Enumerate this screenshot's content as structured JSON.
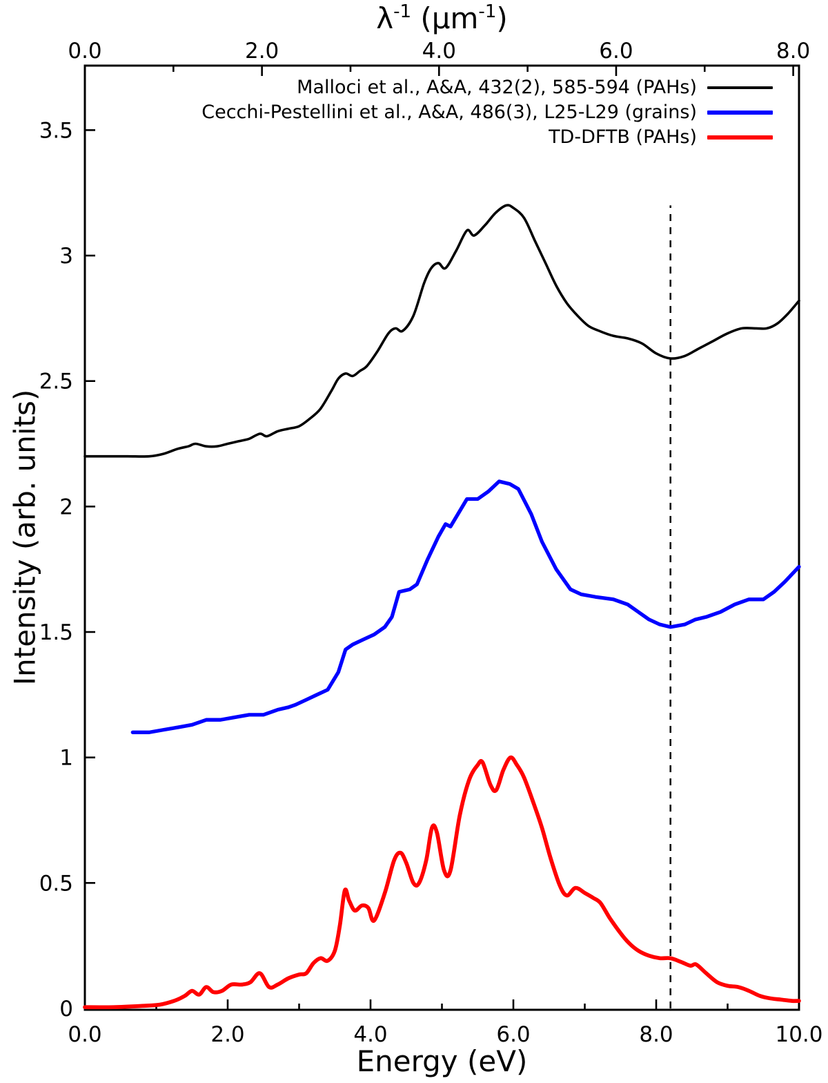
{
  "chart_data": {
    "type": "line",
    "background": "#ffffff",
    "axes_color": "#000000",
    "x_axis": {
      "label": "Energy (eV)",
      "range": [
        0,
        10
      ],
      "major_ticks": [
        0,
        2,
        4,
        6,
        8,
        10
      ],
      "major_tick_labels": [
        "0.0",
        "2.0",
        "4.0",
        "6.0",
        "8.0",
        "10.0"
      ],
      "minor_ticks": [
        1,
        3,
        5,
        7,
        9
      ]
    },
    "top_axis": {
      "label_lambda": "λ",
      "label_sup1": "-1",
      "label_mid": " (μm",
      "label_sup2": "-1",
      "label_end": ")",
      "unit": "μm⁻¹",
      "range": [
        0,
        8
      ],
      "ev_per_unit": 1.23984,
      "major_ticks": [
        0,
        2,
        4,
        6,
        8
      ],
      "major_tick_labels": [
        "0.0",
        "2.0",
        "4.0",
        "6.0",
        "8.0"
      ],
      "minor_ticks": [
        1,
        3,
        5,
        7
      ]
    },
    "y_axis": {
      "label": "Intensity (arb. units)",
      "range": [
        0,
        3.757
      ],
      "major_ticks": [
        0,
        0.5,
        1,
        1.5,
        2,
        2.5,
        3,
        3.5
      ],
      "major_tick_labels": [
        "0",
        "0.5",
        "1",
        "1.5",
        "2",
        "2.5",
        "3",
        "3.5"
      ],
      "minor_ticks": []
    },
    "marker_line": {
      "x": 8.2,
      "y_from": 0,
      "y_to": 3.2,
      "color": "#000000",
      "width": 2.5,
      "dash": [
        10,
        9
      ]
    },
    "legend_position": "upper-right",
    "series": [
      {
        "name": "Malloci et al., A&A, 432(2), 585-594 (PAHs)",
        "color": "#000000",
        "width": 3.6,
        "smooth": true,
        "points": [
          [
            0,
            2.2
          ],
          [
            0.3,
            2.2
          ],
          [
            0.6,
            2.2
          ],
          [
            0.9,
            2.2
          ],
          [
            1.1,
            2.21
          ],
          [
            1.3,
            2.23
          ],
          [
            1.45,
            2.24
          ],
          [
            1.55,
            2.25
          ],
          [
            1.7,
            2.24
          ],
          [
            1.85,
            2.24
          ],
          [
            2.0,
            2.25
          ],
          [
            2.15,
            2.26
          ],
          [
            2.3,
            2.27
          ],
          [
            2.45,
            2.29
          ],
          [
            2.55,
            2.28
          ],
          [
            2.7,
            2.3
          ],
          [
            2.85,
            2.31
          ],
          [
            3.0,
            2.32
          ],
          [
            3.15,
            2.35
          ],
          [
            3.3,
            2.39
          ],
          [
            3.45,
            2.46
          ],
          [
            3.55,
            2.51
          ],
          [
            3.65,
            2.53
          ],
          [
            3.75,
            2.52
          ],
          [
            3.85,
            2.54
          ],
          [
            3.95,
            2.56
          ],
          [
            4.1,
            2.62
          ],
          [
            4.25,
            2.69
          ],
          [
            4.35,
            2.71
          ],
          [
            4.45,
            2.7
          ],
          [
            4.6,
            2.76
          ],
          [
            4.75,
            2.89
          ],
          [
            4.85,
            2.95
          ],
          [
            4.95,
            2.97
          ],
          [
            5.05,
            2.95
          ],
          [
            5.2,
            3.02
          ],
          [
            5.35,
            3.1
          ],
          [
            5.45,
            3.08
          ],
          [
            5.6,
            3.12
          ],
          [
            5.75,
            3.17
          ],
          [
            5.9,
            3.2
          ],
          [
            6.0,
            3.19
          ],
          [
            6.15,
            3.15
          ],
          [
            6.3,
            3.06
          ],
          [
            6.45,
            2.97
          ],
          [
            6.6,
            2.88
          ],
          [
            6.75,
            2.81
          ],
          [
            6.9,
            2.76
          ],
          [
            7.05,
            2.72
          ],
          [
            7.2,
            2.7
          ],
          [
            7.4,
            2.68
          ],
          [
            7.6,
            2.67
          ],
          [
            7.8,
            2.65
          ],
          [
            8.0,
            2.61
          ],
          [
            8.2,
            2.59
          ],
          [
            8.4,
            2.6
          ],
          [
            8.6,
            2.63
          ],
          [
            8.8,
            2.66
          ],
          [
            9.0,
            2.69
          ],
          [
            9.2,
            2.71
          ],
          [
            9.4,
            2.71
          ],
          [
            9.55,
            2.71
          ],
          [
            9.7,
            2.73
          ],
          [
            9.85,
            2.77
          ],
          [
            10,
            2.82
          ]
        ]
      },
      {
        "name": "Cecchi-Pestellini et al., A&A, 486(3), L25-L29 (grains)",
        "color": "#0000ff",
        "width": 5.3,
        "smooth": false,
        "points": [
          [
            0.67,
            1.1
          ],
          [
            0.9,
            1.1
          ],
          [
            1.1,
            1.11
          ],
          [
            1.3,
            1.12
          ],
          [
            1.5,
            1.13
          ],
          [
            1.7,
            1.15
          ],
          [
            1.9,
            1.15
          ],
          [
            2.1,
            1.16
          ],
          [
            2.3,
            1.17
          ],
          [
            2.5,
            1.17
          ],
          [
            2.7,
            1.19
          ],
          [
            2.85,
            1.2
          ],
          [
            2.95,
            1.21
          ],
          [
            3.1,
            1.23
          ],
          [
            3.25,
            1.25
          ],
          [
            3.4,
            1.27
          ],
          [
            3.55,
            1.34
          ],
          [
            3.65,
            1.43
          ],
          [
            3.75,
            1.45
          ],
          [
            3.9,
            1.47
          ],
          [
            4.05,
            1.49
          ],
          [
            4.2,
            1.52
          ],
          [
            4.3,
            1.56
          ],
          [
            4.4,
            1.66
          ],
          [
            4.55,
            1.67
          ],
          [
            4.65,
            1.69
          ],
          [
            4.8,
            1.79
          ],
          [
            4.95,
            1.88
          ],
          [
            5.05,
            1.93
          ],
          [
            5.12,
            1.92
          ],
          [
            5.35,
            2.03
          ],
          [
            5.5,
            2.03
          ],
          [
            5.65,
            2.06
          ],
          [
            5.8,
            2.1
          ],
          [
            5.95,
            2.09
          ],
          [
            6.07,
            2.07
          ],
          [
            6.25,
            1.97
          ],
          [
            6.4,
            1.86
          ],
          [
            6.6,
            1.75
          ],
          [
            6.8,
            1.67
          ],
          [
            6.95,
            1.65
          ],
          [
            7.15,
            1.64
          ],
          [
            7.4,
            1.63
          ],
          [
            7.6,
            1.61
          ],
          [
            7.75,
            1.58
          ],
          [
            7.9,
            1.55
          ],
          [
            8.05,
            1.53
          ],
          [
            8.2,
            1.52
          ],
          [
            8.4,
            1.53
          ],
          [
            8.55,
            1.55
          ],
          [
            8.7,
            1.56
          ],
          [
            8.9,
            1.58
          ],
          [
            9.1,
            1.61
          ],
          [
            9.3,
            1.63
          ],
          [
            9.5,
            1.63
          ],
          [
            9.65,
            1.66
          ],
          [
            9.8,
            1.7
          ],
          [
            10,
            1.76
          ]
        ]
      },
      {
        "name": "TD-DFTB (PAHs)",
        "color": "#ff0000",
        "width": 5.7,
        "smooth": true,
        "points": [
          [
            0,
            0.005
          ],
          [
            0.4,
            0.005
          ],
          [
            0.8,
            0.01
          ],
          [
            1.05,
            0.015
          ],
          [
            1.25,
            0.03
          ],
          [
            1.4,
            0.05
          ],
          [
            1.5,
            0.07
          ],
          [
            1.6,
            0.055
          ],
          [
            1.7,
            0.085
          ],
          [
            1.8,
            0.065
          ],
          [
            1.92,
            0.07
          ],
          [
            2.05,
            0.095
          ],
          [
            2.2,
            0.095
          ],
          [
            2.32,
            0.105
          ],
          [
            2.45,
            0.14
          ],
          [
            2.58,
            0.085
          ],
          [
            2.7,
            0.095
          ],
          [
            2.85,
            0.12
          ],
          [
            3.0,
            0.135
          ],
          [
            3.1,
            0.14
          ],
          [
            3.2,
            0.18
          ],
          [
            3.3,
            0.2
          ],
          [
            3.4,
            0.19
          ],
          [
            3.5,
            0.23
          ],
          [
            3.57,
            0.33
          ],
          [
            3.64,
            0.47
          ],
          [
            3.7,
            0.43
          ],
          [
            3.78,
            0.39
          ],
          [
            3.88,
            0.41
          ],
          [
            3.97,
            0.4
          ],
          [
            4.05,
            0.35
          ],
          [
            4.2,
            0.46
          ],
          [
            4.33,
            0.59
          ],
          [
            4.42,
            0.62
          ],
          [
            4.5,
            0.58
          ],
          [
            4.6,
            0.5
          ],
          [
            4.68,
            0.5
          ],
          [
            4.78,
            0.59
          ],
          [
            4.86,
            0.72
          ],
          [
            4.93,
            0.7
          ],
          [
            5.03,
            0.55
          ],
          [
            5.12,
            0.55
          ],
          [
            5.25,
            0.77
          ],
          [
            5.38,
            0.91
          ],
          [
            5.5,
            0.97
          ],
          [
            5.57,
            0.98
          ],
          [
            5.68,
            0.89
          ],
          [
            5.76,
            0.87
          ],
          [
            5.86,
            0.95
          ],
          [
            5.96,
            1.0
          ],
          [
            6.05,
            0.97
          ],
          [
            6.15,
            0.92
          ],
          [
            6.28,
            0.82
          ],
          [
            6.4,
            0.72
          ],
          [
            6.52,
            0.6
          ],
          [
            6.65,
            0.49
          ],
          [
            6.75,
            0.45
          ],
          [
            6.87,
            0.48
          ],
          [
            7.0,
            0.46
          ],
          [
            7.12,
            0.44
          ],
          [
            7.22,
            0.42
          ],
          [
            7.35,
            0.36
          ],
          [
            7.5,
            0.3
          ],
          [
            7.62,
            0.26
          ],
          [
            7.75,
            0.23
          ],
          [
            7.9,
            0.21
          ],
          [
            8.05,
            0.2
          ],
          [
            8.2,
            0.2
          ],
          [
            8.35,
            0.185
          ],
          [
            8.48,
            0.17
          ],
          [
            8.56,
            0.175
          ],
          [
            8.7,
            0.14
          ],
          [
            8.85,
            0.105
          ],
          [
            9.0,
            0.09
          ],
          [
            9.15,
            0.085
          ],
          [
            9.3,
            0.07
          ],
          [
            9.45,
            0.05
          ],
          [
            9.6,
            0.04
          ],
          [
            9.75,
            0.035
          ],
          [
            9.9,
            0.03
          ],
          [
            10,
            0.03
          ]
        ]
      }
    ]
  }
}
